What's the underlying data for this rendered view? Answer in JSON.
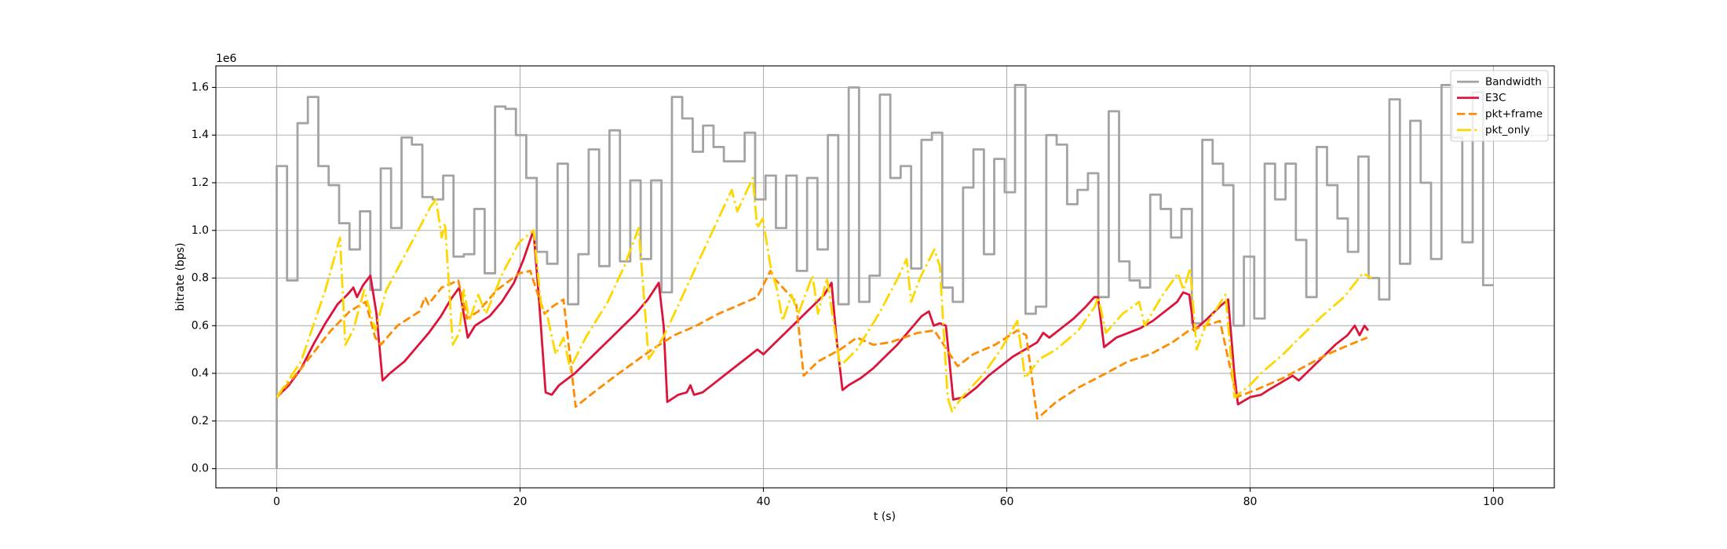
{
  "chart_data": {
    "type": "line",
    "xlabel": "t (s)",
    "ylabel": "bitrate (bps)",
    "y_offset_label": "1e6",
    "xlim": [
      -5,
      105
    ],
    "ylim": [
      -80500,
      1690500
    ],
    "xticks": [
      0,
      20,
      40,
      60,
      80,
      100
    ],
    "yticks": [
      {
        "value": 0,
        "label": "0.0"
      },
      {
        "value": 200000,
        "label": "0.2"
      },
      {
        "value": 400000,
        "label": "0.4"
      },
      {
        "value": 600000,
        "label": "0.6"
      },
      {
        "value": 800000,
        "label": "0.8"
      },
      {
        "value": 1000000,
        "label": "1.0"
      },
      {
        "value": 1200000,
        "label": "1.2"
      },
      {
        "value": 1400000,
        "label": "1.4"
      },
      {
        "value": 1600000,
        "label": "1.6"
      }
    ],
    "grid": true,
    "legend": "upper right",
    "series": [
      {
        "name": "Bandwidth",
        "color": "#a3a3a3",
        "linestyle": "solid",
        "drawstyle": "steps-post",
        "x": [
          0,
          0,
          0.85,
          1.71,
          2.56,
          3.42,
          4.27,
          5.13,
          5.98,
          6.84,
          7.69,
          8.55,
          9.4,
          10.26,
          11.11,
          11.97,
          12.82,
          13.68,
          14.53,
          15.38,
          16.24,
          17.09,
          17.95,
          18.8,
          19.66,
          20.51,
          21.37,
          22.22,
          23.08,
          23.93,
          24.79,
          25.64,
          26.5,
          27.35,
          28.21,
          29.06,
          29.91,
          30.77,
          31.62,
          32.48,
          33.33,
          34.19,
          35.04,
          35.9,
          36.75,
          37.61,
          38.46,
          39.32,
          40.17,
          41.03,
          41.88,
          42.74,
          43.59,
          44.44,
          45.3,
          46.15,
          47.01,
          47.86,
          48.72,
          49.57,
          50.43,
          51.28,
          52.14,
          52.99,
          53.85,
          54.7,
          55.56,
          56.41,
          57.26,
          58.12,
          58.97,
          59.83,
          60.68,
          61.54,
          62.39,
          63.25,
          64.1,
          64.96,
          65.81,
          66.67,
          67.52,
          68.38,
          69.23,
          70.09,
          70.94,
          71.79,
          72.65,
          73.5,
          74.36,
          75.21,
          76.07,
          76.92,
          77.78,
          78.63,
          79.49,
          80.34,
          81.2,
          82.05,
          82.91,
          83.76,
          84.62,
          85.47,
          86.32,
          87.18,
          88.03,
          88.89,
          89.74,
          90.6,
          91.45,
          92.31,
          93.16,
          94.02,
          94.87,
          95.73,
          96.58,
          97.44,
          98.29,
          99.15,
          100
        ],
        "values": [
          0,
          1270000,
          790000,
          1450000,
          1560000,
          1270000,
          1190000,
          1030000,
          920000,
          1080000,
          750000,
          1260000,
          1010000,
          1390000,
          1360000,
          1140000,
          1130000,
          1230000,
          890000,
          900000,
          1090000,
          820000,
          1520000,
          1510000,
          1400000,
          1220000,
          910000,
          860000,
          1280000,
          690000,
          900000,
          1340000,
          850000,
          1420000,
          870000,
          1210000,
          880000,
          1210000,
          740000,
          1560000,
          1470000,
          1330000,
          1440000,
          1350000,
          1290000,
          1290000,
          1410000,
          1130000,
          1230000,
          1010000,
          1230000,
          830000,
          1220000,
          920000,
          1400000,
          690000,
          1600000,
          700000,
          810000,
          1570000,
          1220000,
          1270000,
          840000,
          1380000,
          1410000,
          760000,
          700000,
          1180000,
          1340000,
          900000,
          1300000,
          1160000,
          1610000,
          650000,
          680000,
          1400000,
          1360000,
          1110000,
          1170000,
          1240000,
          720000,
          1500000,
          870000,
          790000,
          760000,
          1150000,
          1090000,
          970000,
          1090000,
          610000,
          1380000,
          1280000,
          1190000,
          600000,
          890000,
          630000,
          1280000,
          1130000,
          1280000,
          960000,
          720000,
          1350000,
          1190000,
          1050000,
          910000,
          1310000,
          800000,
          710000,
          1550000,
          860000,
          1460000,
          1200000,
          880000,
          1610000,
          1390000,
          950000,
          1580000,
          770000,
          770000
        ]
      },
      {
        "name": "E3C",
        "color": "#dc143c",
        "linestyle": "solid",
        "x": [
          0,
          1,
          2,
          3,
          4,
          5,
          5.8,
          6.3,
          6.6,
          7.1,
          7.7,
          8.2,
          8.7,
          9.3,
          10.5,
          11.5,
          12.5,
          13.5,
          14.3,
          15,
          15.7,
          16.3,
          17.5,
          18.5,
          19.5,
          20.3,
          21.1,
          21.5,
          22.1,
          22.6,
          23.2,
          24.5,
          25.5,
          26.5,
          27.5,
          28.5,
          29.5,
          30.5,
          31.4,
          31.8,
          32.1,
          33,
          33.7,
          34,
          34.3,
          35,
          36,
          37,
          38,
          39,
          39.5,
          40,
          41,
          42,
          43,
          44,
          45,
          45.6,
          46,
          46.5,
          47,
          48,
          49,
          50,
          51,
          52,
          53,
          53.6,
          54,
          54.5,
          55,
          55.6,
          56.5,
          57.5,
          58.5,
          59.5,
          60.5,
          61.5,
          62.5,
          63,
          63.5,
          64.5,
          65.5,
          66.5,
          67.2,
          67.5,
          68,
          69,
          70,
          71,
          72,
          73,
          74,
          74.5,
          75,
          75.4,
          76.5,
          77.5,
          78.2,
          78.7,
          79,
          80,
          80.9,
          81.5,
          82.5,
          83.5,
          84,
          85,
          86,
          87,
          88,
          88.6,
          89,
          89.4,
          89.7
        ],
        "values": [
          300000,
          350000,
          420000,
          520000,
          610000,
          690000,
          730000,
          760000,
          720000,
          770000,
          810000,
          650000,
          370000,
          400000,
          450000,
          510000,
          570000,
          640000,
          710000,
          760000,
          550000,
          600000,
          640000,
          700000,
          780000,
          880000,
          1000000,
          750000,
          320000,
          310000,
          350000,
          400000,
          450000,
          500000,
          550000,
          600000,
          650000,
          710000,
          780000,
          600000,
          280000,
          310000,
          320000,
          350000,
          310000,
          320000,
          360000,
          400000,
          440000,
          480000,
          500000,
          480000,
          530000,
          580000,
          630000,
          680000,
          730000,
          780000,
          550000,
          330000,
          350000,
          380000,
          420000,
          470000,
          520000,
          580000,
          640000,
          660000,
          600000,
          610000,
          600000,
          290000,
          300000,
          340000,
          390000,
          430000,
          470000,
          500000,
          530000,
          570000,
          550000,
          590000,
          630000,
          680000,
          720000,
          720000,
          510000,
          550000,
          570000,
          590000,
          620000,
          660000,
          700000,
          740000,
          730000,
          580000,
          630000,
          680000,
          710000,
          400000,
          270000,
          300000,
          310000,
          330000,
          360000,
          390000,
          370000,
          420000,
          470000,
          520000,
          560000,
          600000,
          560000,
          600000,
          580000
        ]
      },
      {
        "name": "pkt+frame",
        "color": "#ff8c00",
        "linestyle": "dashed",
        "x": [
          0,
          2,
          4.46,
          6,
          7.3,
          8.1,
          8.55,
          9.92,
          11.74,
          12.19,
          12.47,
          13.56,
          14.92,
          15.65,
          16.56,
          18.11,
          19.93,
          20.84,
          21.47,
          22.02,
          22.66,
          23.57,
          24.57,
          26.3,
          28.12,
          29.48,
          30.85,
          32.67,
          34.49,
          36.31,
          38.13,
          39.49,
          40.58,
          40.86,
          41.77,
          42.68,
          43.31,
          44.49,
          46.31,
          47.68,
          49.04,
          50.41,
          52.68,
          54.05,
          55.96,
          57.23,
          59.05,
          60.87,
          61.6,
          62.51,
          64.06,
          65.88,
          68.15,
          69.97,
          71.79,
          73.61,
          74.98,
          76.34,
          77.52,
          78.89,
          80.44,
          82.71,
          84.53,
          86.35,
          88.17,
          89.63
        ],
        "values": [
          300000,
          420000,
          580000,
          660000,
          700000,
          550000,
          520000,
          600000,
          660000,
          720000,
          690000,
          760000,
          790000,
          630000,
          660000,
          750000,
          820000,
          830000,
          730000,
          650000,
          680000,
          710000,
          260000,
          330000,
          400000,
          450000,
          500000,
          560000,
          600000,
          650000,
          690000,
          720000,
          830000,
          800000,
          750000,
          700000,
          390000,
          450000,
          500000,
          550000,
          520000,
          530000,
          570000,
          580000,
          430000,
          480000,
          520000,
          580000,
          560000,
          210000,
          280000,
          340000,
          400000,
          450000,
          480000,
          530000,
          580000,
          600000,
          620000,
          300000,
          330000,
          380000,
          430000,
          480000,
          520000,
          550000
        ]
      },
      {
        "name": "pkt_only",
        "color": "#ffd700",
        "linestyle": "dashdot",
        "x": [
          0,
          2,
          4,
          5.2,
          5.64,
          6.28,
          7.19,
          8.1,
          9.01,
          10.37,
          12.65,
          13.1,
          13.56,
          13.83,
          14.47,
          15.01,
          15.38,
          15.83,
          16.56,
          17.2,
          18.56,
          19.93,
          21.11,
          21.75,
          22.2,
          22.93,
          23.57,
          24.11,
          25.39,
          27.21,
          28.57,
          29.75,
          30.57,
          31.76,
          33.58,
          35.4,
          36.76,
          37.4,
          37.85,
          38.58,
          39.13,
          39.49,
          39.95,
          40.58,
          41.13,
          41.58,
          42.31,
          42.86,
          44.04,
          44.49,
          45.22,
          46.31,
          47.68,
          49.5,
          51.05,
          51.77,
          52.14,
          52.87,
          54.05,
          54.5,
          55.14,
          55.5,
          56.32,
          58.14,
          59.51,
          60.87,
          61.51,
          62.69,
          64.06,
          65.88,
          67.24,
          67.52,
          68.15,
          69.52,
          70.88,
          71.34,
          72.7,
          74.07,
          74.52,
          75.07,
          75.61,
          76.34,
          77.98,
          78.71,
          79.98,
          80.89,
          82.71,
          84.08,
          85.9,
          87.72,
          89.26,
          89.99
        ],
        "values": [
          300000,
          450000,
          750000,
          970000,
          520000,
          580000,
          750000,
          580000,
          750000,
          880000,
          1100000,
          1130000,
          970000,
          1030000,
          520000,
          570000,
          750000,
          620000,
          730000,
          650000,
          820000,
          950000,
          1000000,
          680000,
          650000,
          480000,
          550000,
          420000,
          550000,
          700000,
          850000,
          1010000,
          460000,
          550000,
          750000,
          950000,
          1100000,
          1170000,
          1080000,
          1160000,
          1220000,
          1010000,
          1050000,
          850000,
          750000,
          620000,
          730000,
          650000,
          810000,
          650000,
          800000,
          430000,
          500000,
          650000,
          800000,
          880000,
          700000,
          800000,
          920000,
          850000,
          300000,
          240000,
          300000,
          400000,
          500000,
          620000,
          380000,
          460000,
          500000,
          580000,
          680000,
          720000,
          570000,
          650000,
          700000,
          600000,
          720000,
          820000,
          750000,
          840000,
          500000,
          600000,
          730000,
          300000,
          350000,
          400000,
          480000,
          550000,
          640000,
          720000,
          820000,
          800000
        ]
      }
    ]
  }
}
